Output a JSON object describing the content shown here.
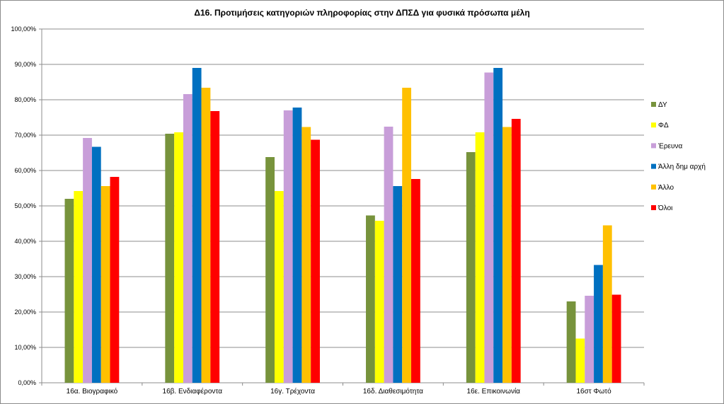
{
  "chart_data": {
    "type": "bar",
    "title": "Δ16. Προτιμήσεις κατηγοριών πληροφορίας  στην ΔΠΣΔ για  φυσικά πρόσωπα μέλη",
    "xlabel": "",
    "ylabel": "",
    "ylim": [
      0,
      100
    ],
    "yticks": [
      "0,00%",
      "10,00%",
      "20,00%",
      "30,00%",
      "40,00%",
      "50,00%",
      "60,00%",
      "70,00%",
      "80,00%",
      "90,00%",
      "100,00%"
    ],
    "grid": true,
    "legend_position": "right",
    "categories": [
      "16α. Βιογραφικό",
      "16β. Ενδιαφέροντα",
      "16γ. Τρέχοντα",
      "16δ. Διαθεσιμότητα",
      "16ε. Επικοινωνία",
      "16στ Φωτό"
    ],
    "series": [
      {
        "name": "ΔΥ",
        "color": "#77933c",
        "values": [
          52.0,
          70.4,
          63.8,
          47.3,
          65.2,
          23.0
        ]
      },
      {
        "name": "ΦΔ",
        "color": "#ffff00",
        "values": [
          54.2,
          70.8,
          54.2,
          45.8,
          70.8,
          12.5
        ]
      },
      {
        "name": "Έρευνα",
        "color": "#c89ed9",
        "values": [
          69.2,
          81.6,
          77.0,
          72.4,
          87.7,
          24.6
        ]
      },
      {
        "name": "Άλλη δημ αρχή",
        "color": "#0070c0",
        "values": [
          66.7,
          89.0,
          77.8,
          55.6,
          89.0,
          33.3
        ]
      },
      {
        "name": "Άλλο",
        "color": "#ffc000",
        "values": [
          55.6,
          83.4,
          72.3,
          83.4,
          72.3,
          44.5
        ]
      },
      {
        "name": "Όλοι",
        "color": "#ff0000",
        "values": [
          58.2,
          76.8,
          68.7,
          57.6,
          74.6,
          24.9
        ]
      }
    ]
  }
}
